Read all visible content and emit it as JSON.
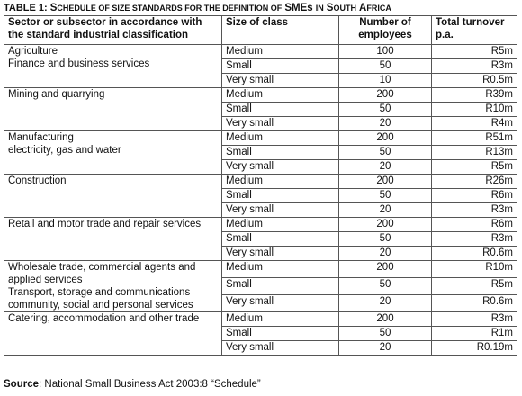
{
  "caption": {
    "label": "TABLE 1:",
    "title_first": "S",
    "title_rest": "CHEDULE OF SIZE STANDARDS FOR THE DEFINITION OF",
    "title_smes": "SMEs",
    "title_in": "IN",
    "title_sa_s": "S",
    "title_sa_rest": "OUTH",
    "title_africa_a": "A",
    "title_africa_rest": "FRICA"
  },
  "headers": {
    "sector": "Sector or subsector in accordance with the standard industrial classification",
    "size_class": "Size of class",
    "employees": "Number of employees",
    "turnover": "Total turnover p.a."
  },
  "groups": [
    {
      "sector_lines": [
        "Agriculture",
        "Finance and business services"
      ],
      "rows": [
        {
          "size": "Medium",
          "employees": "100",
          "turnover": "R5m"
        },
        {
          "size": "Small",
          "employees": "50",
          "turnover": "R3m"
        },
        {
          "size": "Very small",
          "employees": "10",
          "turnover": "R0.5m"
        }
      ]
    },
    {
      "sector_lines": [
        "Mining and quarrying"
      ],
      "rows": [
        {
          "size": "Medium",
          "employees": "200",
          "turnover": "R39m"
        },
        {
          "size": "Small",
          "employees": "50",
          "turnover": "R10m"
        },
        {
          "size": "Very small",
          "employees": "20",
          "turnover": "R4m"
        }
      ]
    },
    {
      "sector_lines": [
        "Manufacturing",
        "electricity, gas and water"
      ],
      "rows": [
        {
          "size": "Medium",
          "employees": "200",
          "turnover": "R51m"
        },
        {
          "size": "Small",
          "employees": "50",
          "turnover": "R13m"
        },
        {
          "size": "Very small",
          "employees": "20",
          "turnover": "R5m"
        }
      ]
    },
    {
      "sector_lines": [
        "Construction"
      ],
      "rows": [
        {
          "size": "Medium",
          "employees": "200",
          "turnover": "R26m"
        },
        {
          "size": "Small",
          "employees": "50",
          "turnover": "R6m"
        },
        {
          "size": "Very small",
          "employees": "20",
          "turnover": "R3m"
        }
      ]
    },
    {
      "sector_lines": [
        "Retail and motor trade and repair services"
      ],
      "rows": [
        {
          "size": "Medium",
          "employees": "200",
          "turnover": "R6m"
        },
        {
          "size": "Small",
          "employees": "50",
          "turnover": "R3m"
        },
        {
          "size": "Very small",
          "employees": "20",
          "turnover": "R0.6m"
        }
      ]
    },
    {
      "sector_lines": [
        "Wholesale trade, commercial agents and",
        "applied services",
        "Transport, storage and communications",
        "community, social and personal services"
      ],
      "rows": [
        {
          "size": "Medium",
          "employees": "200",
          "turnover": "R10m"
        },
        {
          "size": "Small",
          "employees": "50",
          "turnover": "R5m"
        },
        {
          "size": "Very small",
          "employees": "20",
          "turnover": "R0.6m"
        }
      ]
    },
    {
      "sector_lines": [
        "Catering, accommodation and other trade"
      ],
      "rows": [
        {
          "size": "Medium",
          "employees": "200",
          "turnover": "R3m"
        },
        {
          "size": "Small",
          "employees": "50",
          "turnover": "R1m"
        },
        {
          "size": "Very small",
          "employees": "20",
          "turnover": "R0.19m"
        }
      ]
    }
  ],
  "source": {
    "label": "Source",
    "text": ": National Small Business Act 2003:8 “Schedule”"
  }
}
